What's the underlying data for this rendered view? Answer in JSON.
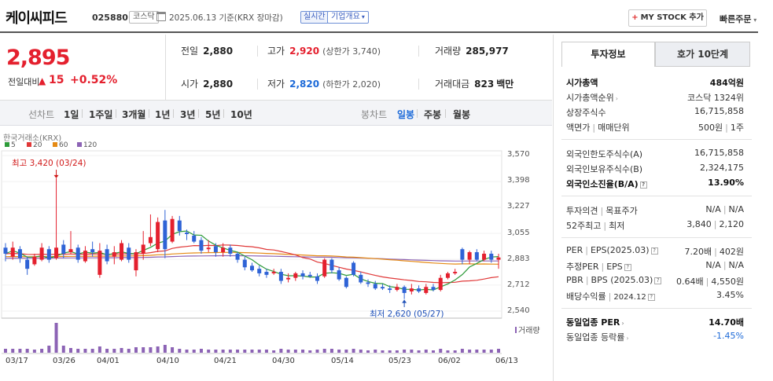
{
  "header": {
    "stock_name": "케이씨피드",
    "stock_code": "025880",
    "market": "코스닥",
    "date_text": "2025.06.13 기준(KRX 장마감)",
    "realtime_label": "실시간",
    "company_info_label": "기업개요",
    "mystock_label": "MY STOCK 추가",
    "quick_order_label": "빠른주문"
  },
  "price": {
    "current": "2,895",
    "change_label": "전일대비",
    "change_value": "15",
    "change_pct": "+0.52%",
    "prev_close_label": "전일",
    "prev_close": "2,880",
    "open_label": "시가",
    "open": "2,880",
    "high_label": "고가",
    "high": "2,920",
    "upper_limit": "(상한가 3,740)",
    "low_label": "저가",
    "low": "2,820",
    "lower_limit": "(하한가 2,020)",
    "volume_label": "거래량",
    "volume": "285,977",
    "amount_label": "거래대금",
    "amount": "823",
    "amount_unit": "백만"
  },
  "tabs": {
    "line_chart": "선차트",
    "line_periods": [
      "1일",
      "1주일",
      "3개월",
      "1년",
      "3년",
      "5년",
      "10년"
    ],
    "candle_chart": "봉차트",
    "candle_periods": [
      "일봉",
      "주봉",
      "월봉"
    ],
    "active_candle": "일봉"
  },
  "chart_data": {
    "type": "candlestick",
    "source": "한국거래소(KRX)",
    "moving_averages": [
      {
        "name": "5",
        "color": "#2e9b3a"
      },
      {
        "name": "20",
        "color": "#e03838"
      },
      {
        "name": "60",
        "color": "#e58a14"
      },
      {
        "name": "120",
        "color": "#8c63b5"
      }
    ],
    "y_ticks": [
      "3,570",
      "3,398",
      "3,227",
      "3,055",
      "2,883",
      "2,712",
      "2,540"
    ],
    "ylim": [
      2540,
      3570
    ],
    "x_ticks": [
      "03/17",
      "03/26",
      "04/01",
      "04/10",
      "04/21",
      "04/30",
      "05/14",
      "05/23",
      "06/02",
      "06/13"
    ],
    "high_annotation": "최고 3,420 (03/24)",
    "low_annotation": "최저 2,620 (05/27)",
    "volume_label": "거래량",
    "candles": [
      {
        "o": 2960,
        "c": 2920,
        "h": 2990,
        "l": 2870
      },
      {
        "o": 2900,
        "c": 2960,
        "h": 3000,
        "l": 2880
      },
      {
        "o": 2950,
        "c": 2890,
        "h": 2970,
        "l": 2860
      },
      {
        "o": 2880,
        "c": 2820,
        "h": 2900,
        "l": 2780
      },
      {
        "o": 2850,
        "c": 2900,
        "h": 2920,
        "l": 2840
      },
      {
        "o": 2880,
        "c": 2960,
        "h": 2990,
        "l": 2870
      },
      {
        "o": 2950,
        "c": 2880,
        "h": 2970,
        "l": 2860
      },
      {
        "o": 2890,
        "c": 2960,
        "h": 3420,
        "l": 2880
      },
      {
        "o": 2980,
        "c": 2920,
        "h": 3010,
        "l": 2890
      },
      {
        "o": 2930,
        "c": 2950,
        "h": 3070,
        "l": 2920
      },
      {
        "o": 2960,
        "c": 2880,
        "h": 2980,
        "l": 2860
      },
      {
        "o": 2870,
        "c": 2940,
        "h": 2970,
        "l": 2860
      },
      {
        "o": 2950,
        "c": 2930,
        "h": 3000,
        "l": 2900
      },
      {
        "o": 2780,
        "c": 2940,
        "h": 2990,
        "l": 2760
      },
      {
        "o": 2950,
        "c": 2870,
        "h": 2980,
        "l": 2850
      },
      {
        "o": 2900,
        "c": 2930,
        "h": 2970,
        "l": 2850
      },
      {
        "o": 2880,
        "c": 2990,
        "h": 3010,
        "l": 2870
      },
      {
        "o": 2960,
        "c": 2880,
        "h": 2990,
        "l": 2860
      },
      {
        "o": 2810,
        "c": 2930,
        "h": 2950,
        "l": 2770
      },
      {
        "o": 2920,
        "c": 2980,
        "h": 3070,
        "l": 2880
      },
      {
        "o": 2990,
        "c": 3030,
        "h": 3180,
        "l": 2970
      },
      {
        "o": 2950,
        "c": 3130,
        "h": 3160,
        "l": 2930
      },
      {
        "o": 3140,
        "c": 2950,
        "h": 3210,
        "l": 2890
      },
      {
        "o": 3000,
        "c": 3150,
        "h": 3170,
        "l": 2990
      },
      {
        "o": 3140,
        "c": 3070,
        "h": 3170,
        "l": 3040
      },
      {
        "o": 3060,
        "c": 3050,
        "h": 3080,
        "l": 3010
      },
      {
        "o": 3040,
        "c": 3000,
        "h": 3070,
        "l": 2990
      },
      {
        "o": 3010,
        "c": 2940,
        "h": 3030,
        "l": 2920
      },
      {
        "o": 2950,
        "c": 2960,
        "h": 3010,
        "l": 2930
      },
      {
        "o": 2970,
        "c": 2930,
        "h": 2990,
        "l": 2900
      },
      {
        "o": 2930,
        "c": 2960,
        "h": 2990,
        "l": 2900
      },
      {
        "o": 2960,
        "c": 2920,
        "h": 2980,
        "l": 2900
      },
      {
        "o": 2920,
        "c": 2880,
        "h": 2930,
        "l": 2860
      },
      {
        "o": 2880,
        "c": 2830,
        "h": 2900,
        "l": 2810
      },
      {
        "o": 2840,
        "c": 2810,
        "h": 2860,
        "l": 2800
      },
      {
        "o": 2820,
        "c": 2790,
        "h": 2840,
        "l": 2770
      },
      {
        "o": 2800,
        "c": 2780,
        "h": 2820,
        "l": 2760
      },
      {
        "o": 2790,
        "c": 2800,
        "h": 2820,
        "l": 2780
      },
      {
        "o": 2800,
        "c": 2740,
        "h": 2820,
        "l": 2720
      },
      {
        "o": 2750,
        "c": 2760,
        "h": 2790,
        "l": 2730
      },
      {
        "o": 2760,
        "c": 2790,
        "h": 2800,
        "l": 2740
      },
      {
        "o": 2790,
        "c": 2770,
        "h": 2810,
        "l": 2750
      },
      {
        "o": 2780,
        "c": 2770,
        "h": 2800,
        "l": 2760
      },
      {
        "o": 2770,
        "c": 2740,
        "h": 2790,
        "l": 2720
      },
      {
        "o": 2770,
        "c": 2880,
        "h": 2890,
        "l": 2760
      },
      {
        "o": 2880,
        "c": 2810,
        "h": 2890,
        "l": 2790
      },
      {
        "o": 2810,
        "c": 2750,
        "h": 2830,
        "l": 2740
      },
      {
        "o": 2760,
        "c": 2700,
        "h": 2770,
        "l": 2690
      },
      {
        "o": 2860,
        "c": 2780,
        "h": 2870,
        "l": 2770
      },
      {
        "o": 2780,
        "c": 2730,
        "h": 2800,
        "l": 2720
      },
      {
        "o": 2730,
        "c": 2720,
        "h": 2750,
        "l": 2700
      },
      {
        "o": 2720,
        "c": 2690,
        "h": 2740,
        "l": 2680
      },
      {
        "o": 2700,
        "c": 2690,
        "h": 2720,
        "l": 2680
      },
      {
        "o": 2690,
        "c": 2680,
        "h": 2710,
        "l": 2660
      },
      {
        "o": 2680,
        "c": 2700,
        "h": 2720,
        "l": 2670
      },
      {
        "o": 2700,
        "c": 2660,
        "h": 2710,
        "l": 2620
      },
      {
        "o": 2670,
        "c": 2690,
        "h": 2720,
        "l": 2650
      },
      {
        "o": 2690,
        "c": 2670,
        "h": 2710,
        "l": 2660
      },
      {
        "o": 2660,
        "c": 2700,
        "h": 2720,
        "l": 2650
      },
      {
        "o": 2700,
        "c": 2680,
        "h": 2720,
        "l": 2670
      },
      {
        "o": 2680,
        "c": 2760,
        "h": 2780,
        "l": 2670
      },
      {
        "o": 2760,
        "c": 2790,
        "h": 2800,
        "l": 2750
      },
      {
        "o": 2790,
        "c": 2800,
        "h": 2820,
        "l": 2780
      },
      {
        "o": 2950,
        "c": 2880,
        "h": 2960,
        "l": 2850
      },
      {
        "o": 2880,
        "c": 2930,
        "h": 2940,
        "l": 2850
      },
      {
        "o": 2930,
        "c": 2880,
        "h": 2950,
        "l": 2870
      },
      {
        "o": 2880,
        "c": 2920,
        "h": 2940,
        "l": 2870
      },
      {
        "o": 2920,
        "c": 2880,
        "h": 2940,
        "l": 2860
      },
      {
        "o": 2880,
        "c": 2895,
        "h": 2920,
        "l": 2820
      }
    ]
  },
  "right_panel": {
    "tab_info": "투자정보",
    "tab_hoga": "호가 10단계",
    "rows": {
      "market_cap_label": "시가총액",
      "market_cap": "484억원",
      "cap_rank_label": "시가총액순위",
      "cap_rank": "코스닥 1324위",
      "shares_label": "상장주식수",
      "shares": "16,715,858",
      "par_label": "액면가",
      "par_unit_label": "매매단위",
      "par_value": "500원",
      "unit_value": "1주",
      "foreign_limit_label": "외국인한도주식수(A)",
      "foreign_limit": "16,715,858",
      "foreign_hold_label": "외국인보유주식수(B)",
      "foreign_hold": "2,324,175",
      "foreign_ratio_label": "외국인소진율(B/A)",
      "foreign_ratio": "13.90%",
      "opinion_label": "투자의견",
      "target_label": "목표주가",
      "opinion_value": "N/A",
      "target_value": "N/A",
      "w52_high_label": "52주최고",
      "w52_low_label": "최저",
      "w52_high": "3,840",
      "w52_low": "2,120",
      "per_label": "PER",
      "eps_label": "EPS(2025.03)",
      "per_value": "7.20배",
      "eps_value": "402원",
      "est_per_label": "추정PER",
      "est_eps_label": "EPS",
      "est_per_value": "N/A",
      "est_eps_value": "N/A",
      "pbr_label": "PBR",
      "bps_label": "BPS (2025.03)",
      "pbr_value": "0.64배",
      "bps_value": "4,550원",
      "div_label": "배당수익률",
      "div_date": "2024.12",
      "div_value": "3.45%",
      "sector_per_label": "동일업종 PER",
      "sector_per": "14.70배",
      "sector_rate_label": "동일업종 등락률",
      "sector_rate": "-1.45%"
    }
  }
}
